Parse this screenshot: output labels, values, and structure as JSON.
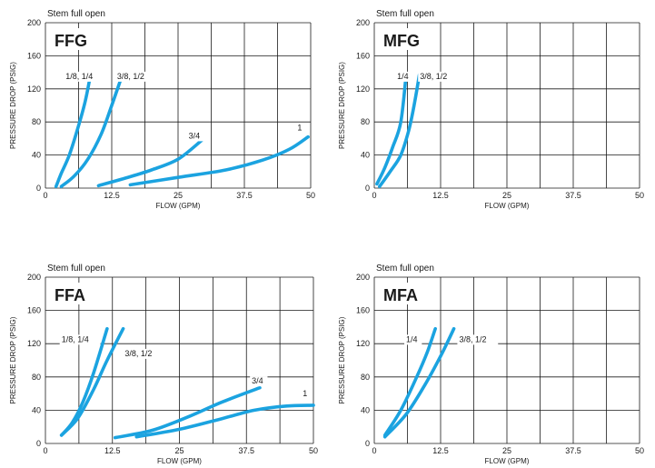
{
  "chart_data": [
    {
      "type": "line",
      "top_label": "Stem full open",
      "title": "FFG",
      "xlabel": "FLOW (GPM)",
      "ylabel": "PRESSURE DROP (PSIG)",
      "xlim": [
        0,
        50
      ],
      "ylim": [
        0,
        200
      ],
      "xticks": [
        "0",
        "12.5",
        "25",
        "37.5",
        "50"
      ],
      "yticks": [
        "0",
        "40",
        "80",
        "120",
        "160",
        "200"
      ],
      "grid": true,
      "line_color": "#1ba3e0",
      "series": [
        {
          "name": "1/8, 1/4",
          "points": [
            [
              2,
              2
            ],
            [
              3,
              18
            ],
            [
              4.5,
              40
            ],
            [
              6,
              70
            ],
            [
              7.5,
              105
            ],
            [
              8.5,
              137
            ]
          ]
        },
        {
          "name": "3/8, 1/2",
          "points": [
            [
              3,
              2
            ],
            [
              5.5,
              15
            ],
            [
              8,
              35
            ],
            [
              10.5,
              65
            ],
            [
              12.5,
              100
            ],
            [
              14.5,
              137
            ]
          ]
        },
        {
          "name": "3/4",
          "points": [
            [
              10,
              3
            ],
            [
              15,
              12
            ],
            [
              20,
              22
            ],
            [
              25,
              35
            ],
            [
              29.5,
              58
            ]
          ]
        },
        {
          "name": "1",
          "points": [
            [
              16,
              4
            ],
            [
              25,
              13
            ],
            [
              34,
              22
            ],
            [
              41,
              34
            ],
            [
              46,
              47
            ],
            [
              49.5,
              62
            ]
          ]
        }
      ]
    },
    {
      "type": "line",
      "top_label": "Stem full open",
      "title": "MFG",
      "xlabel": "FLOW (GPM)",
      "ylabel": "PRESSURE DROP (PSIG)",
      "xlim": [
        0,
        50
      ],
      "ylim": [
        0,
        200
      ],
      "xticks": [
        "0",
        "12.5",
        "25",
        "37.5",
        "50"
      ],
      "yticks": [
        "0",
        "40",
        "80",
        "120",
        "160",
        "200"
      ],
      "grid": true,
      "line_color": "#1ba3e0",
      "series": [
        {
          "name": "1/4",
          "points": [
            [
              0.5,
              5
            ],
            [
              2,
              25
            ],
            [
              3.5,
              50
            ],
            [
              5,
              80
            ],
            [
              6,
              137
            ]
          ]
        },
        {
          "name": "3/8, 1/2",
          "points": [
            [
              1,
              2
            ],
            [
              3,
              20
            ],
            [
              5,
              40
            ],
            [
              6.5,
              70
            ],
            [
              7.5,
              100
            ],
            [
              8.5,
              137
            ]
          ]
        }
      ]
    },
    {
      "type": "line",
      "top_label": "Stem full open",
      "title": "FFA",
      "xlabel": "FLOW (GPM)",
      "ylabel": "PRESSURE DROP (PSIG)",
      "xlim": [
        0,
        50
      ],
      "ylim": [
        0,
        200
      ],
      "xticks": [
        "0",
        "12.5",
        "25",
        "37.5",
        "50"
      ],
      "yticks": [
        "0",
        "40",
        "80",
        "120",
        "160",
        "200"
      ],
      "grid": true,
      "line_color": "#1ba3e0",
      "series": [
        {
          "name": "1/8, 1/4",
          "points": [
            [
              3,
              10
            ],
            [
              5,
              25
            ],
            [
              7,
              50
            ],
            [
              9,
              85
            ],
            [
              11.5,
              138
            ]
          ]
        },
        {
          "name": "3/8, 1/2",
          "points": [
            [
              3,
              10
            ],
            [
              6,
              30
            ],
            [
              9,
              65
            ],
            [
              11.5,
              100
            ],
            [
              14.5,
              138
            ]
          ]
        },
        {
          "name": "3/4",
          "points": [
            [
              13,
              7
            ],
            [
              20,
              16
            ],
            [
              27,
              33
            ],
            [
              33,
              50
            ],
            [
              40,
              67
            ]
          ]
        },
        {
          "name": "1",
          "points": [
            [
              17,
              8
            ],
            [
              25,
              17
            ],
            [
              33,
              30
            ],
            [
              39,
              40
            ],
            [
              45,
              45
            ],
            [
              50,
              46
            ]
          ]
        }
      ]
    },
    {
      "type": "line",
      "top_label": "Stem full open",
      "title": "MFA",
      "xlabel": "FLOW (GPM)",
      "ylabel": "PRESSURE DROP (PSIG)",
      "xlim": [
        0,
        50
      ],
      "ylim": [
        0,
        200
      ],
      "xticks": [
        "0",
        "12.5",
        "25",
        "37.5",
        "50"
      ],
      "yticks": [
        "0",
        "40",
        "80",
        "120",
        "160",
        "200"
      ],
      "grid": true,
      "line_color": "#1ba3e0",
      "series": [
        {
          "name": "1/4",
          "points": [
            [
              2,
              10
            ],
            [
              5,
              40
            ],
            [
              8,
              80
            ],
            [
              10,
              110
            ],
            [
              11.5,
              138
            ]
          ]
        },
        {
          "name": "3/8, 1/2",
          "points": [
            [
              2,
              8
            ],
            [
              6,
              35
            ],
            [
              9.5,
              70
            ],
            [
              12.5,
              105
            ],
            [
              15,
              138
            ]
          ]
        }
      ]
    }
  ]
}
